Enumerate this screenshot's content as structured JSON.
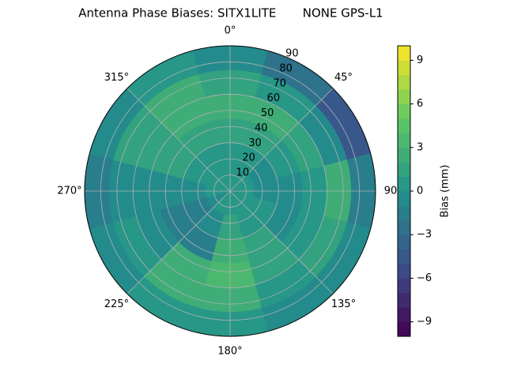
{
  "chart_data": {
    "type": "polar-contour",
    "title": "Antenna Phase Biases: SITX1LITE       NONE GPS-L1",
    "colorbar_label": "Bias (mm)",
    "theta_zero": "N",
    "theta_direction": "clockwise",
    "thetaticks": [
      {
        "value": 0,
        "label": "0°"
      },
      {
        "value": 45,
        "label": "45°"
      },
      {
        "value": 90,
        "label": "90"
      },
      {
        "value": 135,
        "label": "135°"
      },
      {
        "value": 180,
        "label": "180°"
      },
      {
        "value": 225,
        "label": "225°"
      },
      {
        "value": 270,
        "label": "270°"
      },
      {
        "value": 315,
        "label": "315°"
      }
    ],
    "rlim": [
      0,
      90
    ],
    "rticks": [
      10,
      20,
      30,
      40,
      50,
      60,
      70,
      80,
      90
    ],
    "azimuths": [
      0,
      30,
      60,
      90,
      120,
      150,
      180,
      210,
      240,
      270,
      300,
      330
    ],
    "zenith_bins": [
      0,
      15,
      30,
      45,
      60,
      75,
      90
    ],
    "values": [
      [
        0,
        0,
        1,
        2,
        1,
        -1
      ],
      [
        0,
        0,
        1,
        2,
        0,
        -3
      ],
      [
        0,
        -1,
        0,
        1,
        -1,
        -5
      ],
      [
        0,
        -1,
        -1,
        0,
        2,
        -2
      ],
      [
        0,
        0,
        -1,
        0,
        1,
        -1
      ],
      [
        0,
        0,
        1,
        1,
        0,
        -1
      ],
      [
        0,
        1,
        2,
        3,
        2,
        0
      ],
      [
        0,
        -1,
        -2,
        2,
        2,
        0
      ],
      [
        -1,
        -2,
        -2,
        -1,
        0,
        -1
      ],
      [
        0,
        -1,
        -1,
        -1,
        -1,
        -2
      ],
      [
        0,
        0,
        1,
        1,
        1,
        -1
      ],
      [
        0,
        0,
        1,
        2,
        2,
        0
      ]
    ],
    "clim": [
      -10,
      10
    ],
    "levels": 20,
    "colormap": [
      "#440154",
      "#3b528b",
      "#21918c",
      "#5ec962",
      "#fde725"
    ],
    "cticks": [
      {
        "value": -9,
        "label": "−9"
      },
      {
        "value": -6,
        "label": "−6"
      },
      {
        "value": -3,
        "label": "−3"
      },
      0,
      3,
      6,
      9
    ],
    "grid": true
  }
}
